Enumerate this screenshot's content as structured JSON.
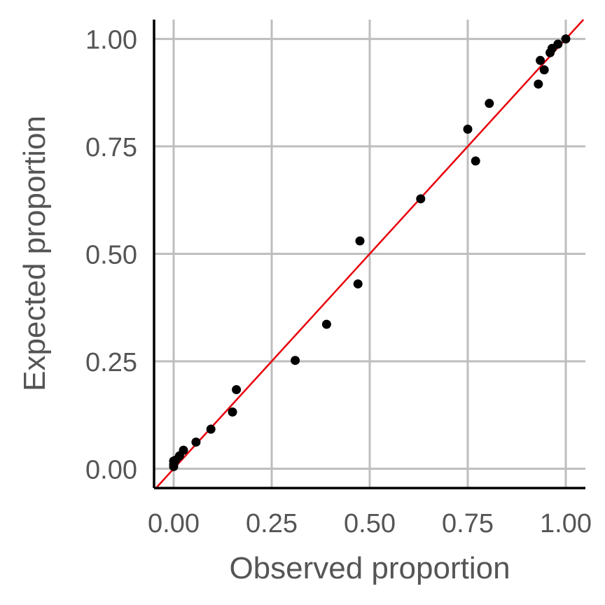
{
  "chart_data": {
    "type": "scatter",
    "xlabel": "Observed proportion",
    "ylabel": "Expected proportion",
    "xlim": [
      -0.05,
      1.05
    ],
    "ylim": [
      -0.045,
      1.045
    ],
    "x_ticks": [
      "0.00",
      "0.25",
      "0.50",
      "0.75",
      "1.00"
    ],
    "y_ticks": [
      "0.00",
      "0.25",
      "0.50",
      "0.75",
      "1.00"
    ],
    "grid": true,
    "legend": "none",
    "reference_line": {
      "type": "identity",
      "color": "#e8000b"
    },
    "point_color": "#000000",
    "points": [
      {
        "x": 0.0,
        "y": 0.005
      },
      {
        "x": 0.0,
        "y": 0.01
      },
      {
        "x": 0.0,
        "y": 0.018
      },
      {
        "x": 0.005,
        "y": 0.02
      },
      {
        "x": 0.015,
        "y": 0.03
      },
      {
        "x": 0.025,
        "y": 0.043
      },
      {
        "x": 0.057,
        "y": 0.062
      },
      {
        "x": 0.095,
        "y": 0.092
      },
      {
        "x": 0.15,
        "y": 0.132
      },
      {
        "x": 0.16,
        "y": 0.184
      },
      {
        "x": 0.31,
        "y": 0.252
      },
      {
        "x": 0.39,
        "y": 0.336
      },
      {
        "x": 0.47,
        "y": 0.43
      },
      {
        "x": 0.475,
        "y": 0.53
      },
      {
        "x": 0.63,
        "y": 0.628
      },
      {
        "x": 0.75,
        "y": 0.79
      },
      {
        "x": 0.77,
        "y": 0.716
      },
      {
        "x": 0.805,
        "y": 0.85
      },
      {
        "x": 0.93,
        "y": 0.895
      },
      {
        "x": 0.935,
        "y": 0.95
      },
      {
        "x": 0.945,
        "y": 0.928
      },
      {
        "x": 0.96,
        "y": 0.968
      },
      {
        "x": 0.965,
        "y": 0.978
      },
      {
        "x": 0.98,
        "y": 0.988
      },
      {
        "x": 1.0,
        "y": 1.0
      }
    ]
  }
}
